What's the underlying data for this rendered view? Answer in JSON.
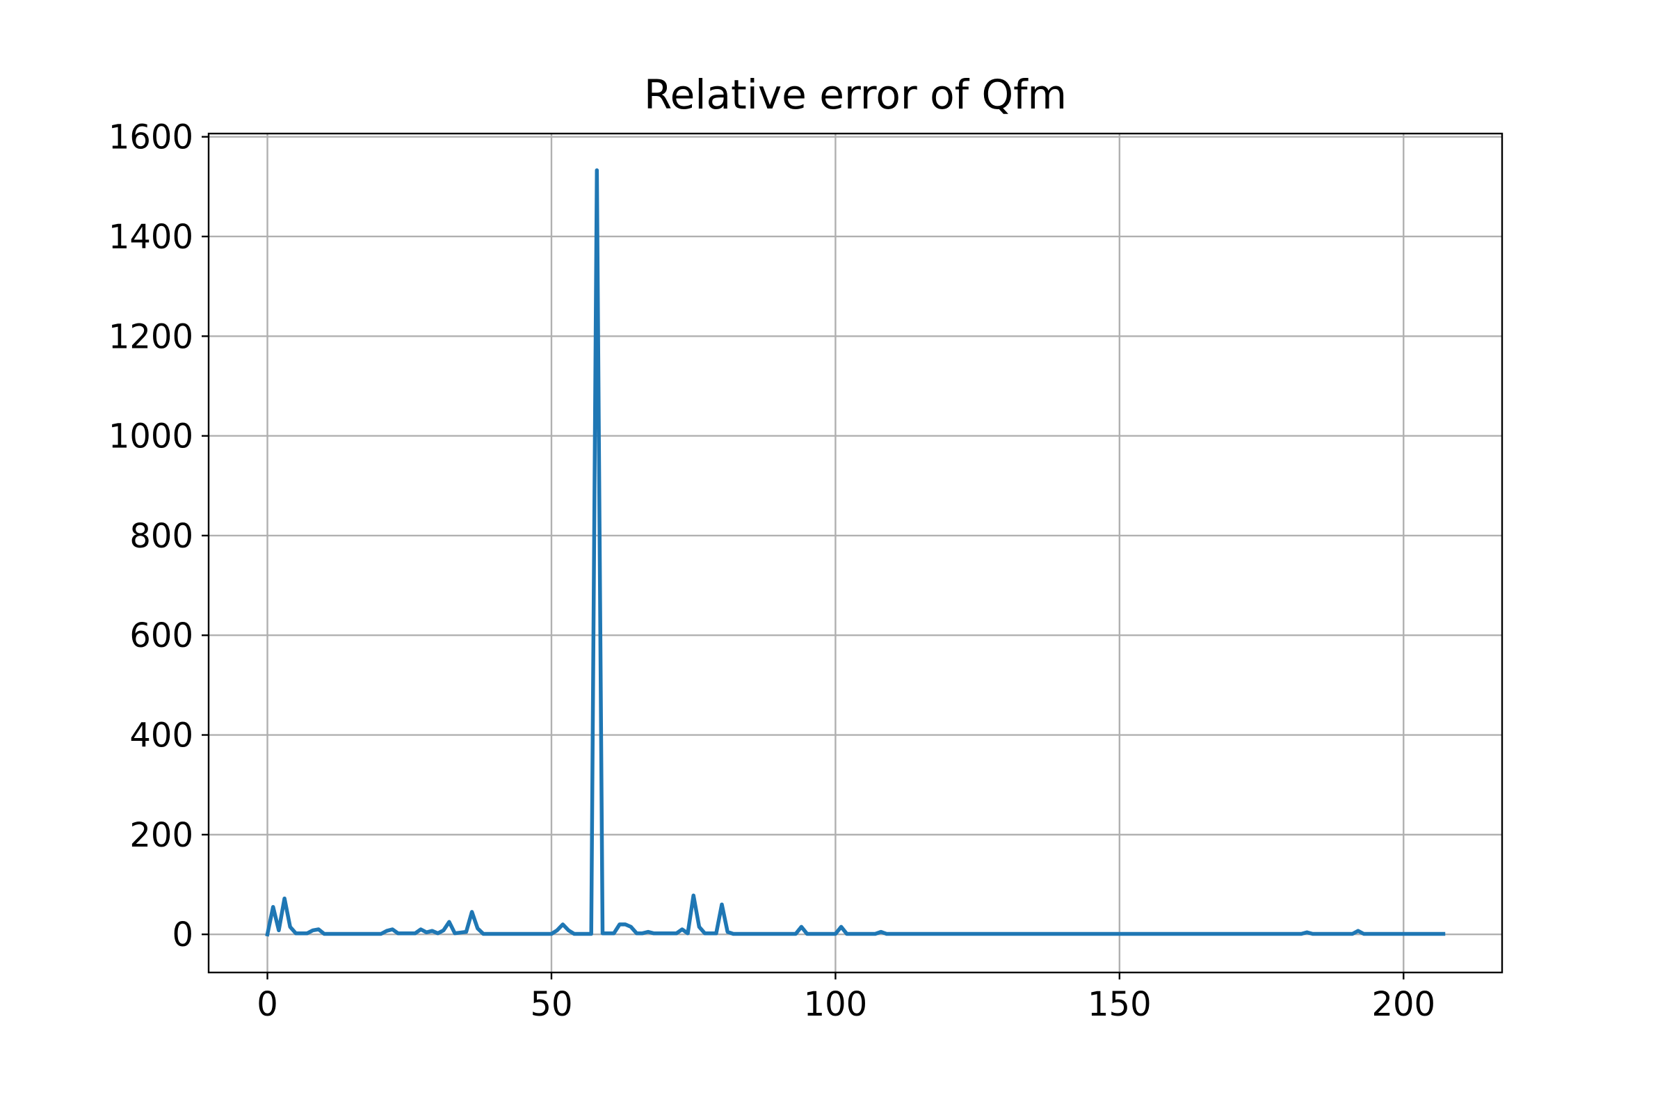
{
  "chart_data": {
    "type": "line",
    "title": "Relative error of Qfm",
    "xlabel": "",
    "ylabel": "",
    "xlim": [
      -10.35,
      217.35
    ],
    "ylim": [
      -76.5,
      1606.5
    ],
    "xticks": [
      0,
      50,
      100,
      150,
      200
    ],
    "yticks": [
      0,
      200,
      400,
      600,
      800,
      1000,
      1200,
      1400,
      1600
    ],
    "grid": true,
    "series": [
      {
        "color": "#1f77b4",
        "points": [
          [
            0,
            0
          ],
          [
            1,
            55
          ],
          [
            2,
            8
          ],
          [
            3,
            72
          ],
          [
            4,
            15
          ],
          [
            5,
            2
          ],
          [
            6,
            2
          ],
          [
            7,
            2
          ],
          [
            8,
            8
          ],
          [
            9,
            10
          ],
          [
            10,
            1
          ],
          [
            20,
            1
          ],
          [
            21,
            7
          ],
          [
            22,
            10
          ],
          [
            23,
            2
          ],
          [
            26,
            2
          ],
          [
            27,
            10
          ],
          [
            28,
            4
          ],
          [
            29,
            7
          ],
          [
            30,
            2
          ],
          [
            31,
            8
          ],
          [
            32,
            25
          ],
          [
            33,
            2
          ],
          [
            35,
            5
          ],
          [
            36,
            45
          ],
          [
            37,
            12
          ],
          [
            38,
            1
          ],
          [
            50,
            1
          ],
          [
            51,
            8
          ],
          [
            52,
            20
          ],
          [
            53,
            8
          ],
          [
            54,
            1
          ],
          [
            57,
            1
          ],
          [
            58,
            1533
          ],
          [
            59,
            2
          ],
          [
            61,
            2
          ],
          [
            62,
            20
          ],
          [
            63,
            20
          ],
          [
            64,
            15
          ],
          [
            65,
            2
          ],
          [
            66,
            2
          ],
          [
            67,
            5
          ],
          [
            68,
            2
          ],
          [
            72,
            2
          ],
          [
            73,
            10
          ],
          [
            74,
            2
          ],
          [
            75,
            78
          ],
          [
            76,
            15
          ],
          [
            77,
            2
          ],
          [
            79,
            2
          ],
          [
            80,
            60
          ],
          [
            81,
            5
          ],
          [
            82,
            1
          ],
          [
            93,
            1
          ],
          [
            94,
            15
          ],
          [
            95,
            1
          ],
          [
            100,
            1
          ],
          [
            101,
            15
          ],
          [
            102,
            1
          ],
          [
            107,
            1
          ],
          [
            108,
            5
          ],
          [
            109,
            1
          ],
          [
            182,
            1
          ],
          [
            183,
            4
          ],
          [
            184,
            1
          ],
          [
            191,
            1
          ],
          [
            192,
            7
          ],
          [
            193,
            1
          ],
          [
            207,
            1
          ]
        ]
      }
    ]
  }
}
